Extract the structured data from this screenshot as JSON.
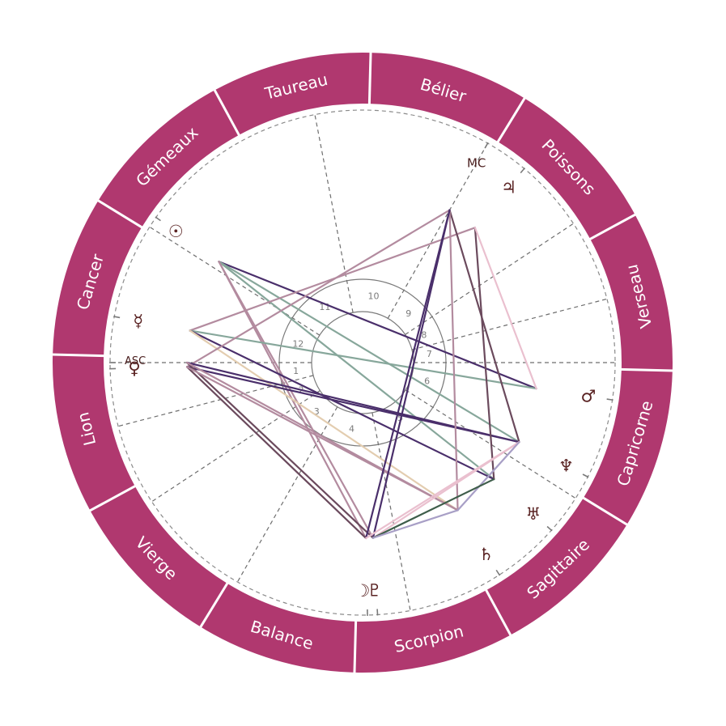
{
  "chart": {
    "zodiac_start_angle": 58.5,
    "signs": [
      {
        "id": "belier",
        "name": "Bélier"
      },
      {
        "id": "taureau",
        "name": "Taureau"
      },
      {
        "id": "gemeaux",
        "name": "Gémeaux"
      },
      {
        "id": "cancer",
        "name": "Cancer"
      },
      {
        "id": "lion",
        "name": "Lion"
      },
      {
        "id": "vierge",
        "name": "Vierge"
      },
      {
        "id": "balance",
        "name": "Balance"
      },
      {
        "id": "scorpion",
        "name": "Scorpion"
      },
      {
        "id": "sagittaire",
        "name": "Sagittaire"
      },
      {
        "id": "capricorne",
        "name": "Capricorne"
      },
      {
        "id": "verseau",
        "name": "Verseau"
      },
      {
        "id": "poissons",
        "name": "Poissons"
      }
    ],
    "houses": [
      {
        "number": "1",
        "cusp_angle": 180
      },
      {
        "number": "2",
        "cusp_angle": 194.6
      },
      {
        "number": "3",
        "cusp_angle": 213.4
      },
      {
        "number": "4",
        "cusp_angle": 240.3
      },
      {
        "number": "5",
        "cusp_angle": 280.9
      },
      {
        "number": "6",
        "cusp_angle": 327.5
      },
      {
        "number": "7",
        "cusp_angle": 0
      },
      {
        "number": "8",
        "cusp_angle": 14.6
      },
      {
        "number": "9",
        "cusp_angle": 33.4
      },
      {
        "number": "10",
        "cusp_angle": 60.3
      },
      {
        "number": "11",
        "cusp_angle": 100.9
      },
      {
        "number": "12",
        "cusp_angle": 147.5
      }
    ],
    "angles": [
      {
        "id": "asc",
        "label": "ASC",
        "angle": 180,
        "label_angle": 181.5,
        "label_r": 281,
        "label_dy": -9,
        "font_size": 13
      },
      {
        "id": "mc",
        "label": "MC",
        "angle": 60.3,
        "label_angle": 60.3,
        "label_r": 284,
        "label_dy": 0,
        "font_size": 15
      }
    ],
    "planets": [
      {
        "id": "sun",
        "name": "Soleil",
        "glyph": "☉",
        "angle": 144.9
      },
      {
        "id": "mercury",
        "name": "Mercure",
        "glyph": "☿",
        "angle": 169.5
      },
      {
        "id": "venus",
        "name": "Vénus",
        "glyph": "♀",
        "angle": 181.4
      },
      {
        "id": "jupiter",
        "name": "Jupiter",
        "glyph": "♃",
        "angle": 50.2
      },
      {
        "id": "mars",
        "name": "Mars",
        "glyph": "♂",
        "angle": 351.5
      },
      {
        "id": "neptune",
        "name": "Neptune",
        "glyph": "♆",
        "angle": 333.1
      },
      {
        "id": "uranus",
        "name": "Uranus",
        "glyph": "♅",
        "angle": 318.4
      },
      {
        "id": "saturn",
        "name": "Saturne",
        "glyph": "♄",
        "angle": 302.8
      },
      {
        "id": "moon",
        "name": "Lune",
        "glyph": "☽",
        "angle": 271.1,
        "glyph_angle": 270.0
      },
      {
        "id": "pluto",
        "name": "Pluton",
        "glyph": "♇",
        "angle": 273.4,
        "glyph_angle": 273.0
      }
    ],
    "aspects": [
      {
        "from": "sun",
        "to": "mars",
        "color": "#4a2f6b"
      },
      {
        "from": "sun",
        "to": "neptune",
        "color": "#87a79b"
      },
      {
        "from": "sun",
        "to": "uranus",
        "color": "#87a79b"
      },
      {
        "from": "sun",
        "to": "moon",
        "color": "#b38b9f"
      },
      {
        "from": "sun",
        "to": "pluto",
        "color": "#b38b9f"
      },
      {
        "from": "mercury",
        "to": "jupiter",
        "color": "#b38b9f"
      },
      {
        "from": "mercury",
        "to": "mars",
        "color": "#87a79b"
      },
      {
        "from": "mercury",
        "to": "uranus",
        "color": "#4a2f6b"
      },
      {
        "from": "mercury",
        "to": "saturn",
        "color": "#e3cdb0"
      },
      {
        "from": "venus",
        "to": "mc",
        "color": "#b38b9f"
      },
      {
        "from": "venus",
        "to": "neptune",
        "color": "#4a2f6b"
      },
      {
        "from": "asc",
        "to": "neptune",
        "color": "#4a2f6b"
      },
      {
        "from": "venus",
        "to": "moon",
        "color": "#6b4a5d"
      },
      {
        "from": "asc",
        "to": "pluto",
        "color": "#6b4a5d"
      },
      {
        "from": "venus",
        "to": "saturn",
        "color": "#b38b9f"
      },
      {
        "from": "asc",
        "to": "saturn",
        "color": "#b38b9f"
      },
      {
        "from": "mc",
        "to": "neptune",
        "color": "#6b4a5d"
      },
      {
        "from": "mc",
        "to": "saturn",
        "color": "#b38b9f"
      },
      {
        "from": "mc",
        "to": "moon",
        "color": "#4a2f6b"
      },
      {
        "from": "mc",
        "to": "pluto",
        "color": "#4a2f6b"
      },
      {
        "from": "jupiter",
        "to": "uranus",
        "color": "#6b4a5d"
      },
      {
        "from": "jupiter",
        "to": "mars",
        "color": "#eac0cf"
      },
      {
        "from": "neptune",
        "to": "moon",
        "color": "#eac0cf"
      },
      {
        "from": "neptune",
        "to": "pluto",
        "color": "#eac0cf"
      },
      {
        "from": "neptune",
        "to": "saturn",
        "color": "#a89fc6"
      },
      {
        "from": "uranus",
        "to": "pluto",
        "color": "#3f5e4b"
      },
      {
        "from": "saturn",
        "to": "pluto",
        "color": "#a89fc6"
      }
    ],
    "colors": {
      "ring": "#b0386f",
      "divider": "#ffffff",
      "dashed_circle": "#8a8a8a",
      "house_line": "#6e6e6e",
      "house_circle": "#7a7a7a",
      "glyph": "#5a2323",
      "tick": "#7a7a7a"
    }
  }
}
